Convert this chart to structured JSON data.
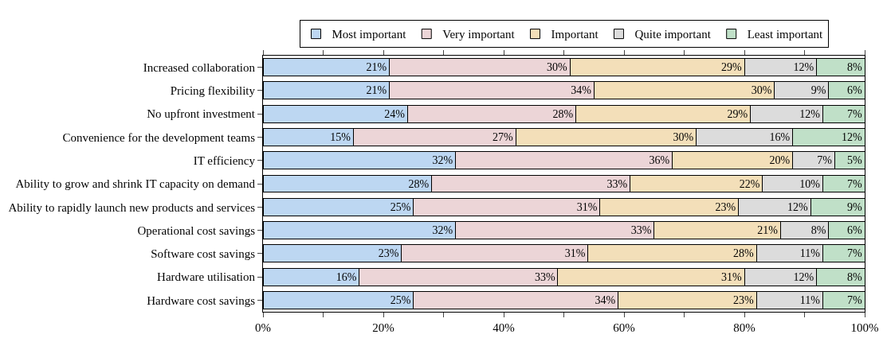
{
  "chart_data": {
    "type": "bar",
    "orientation": "horizontal",
    "stacked": true,
    "categories": [
      "Increased collaboration",
      "Pricing flexibility",
      "No upfront investment",
      "Convenience for the development teams",
      "IT efficiency",
      "Ability to grow and shrink IT capacity on demand",
      "Ability to rapidly launch new products and services",
      "Operational cost savings",
      "Software cost savings",
      "Hardware utilisation",
      "Hardware cost savings"
    ],
    "series": [
      {
        "name": "Most important",
        "color": "#bdd7f2",
        "values": [
          21,
          21,
          24,
          15,
          32,
          28,
          25,
          32,
          23,
          16,
          25
        ],
        "value_labels": [
          "21%",
          "21%",
          "24%",
          "15%",
          "32%",
          "28%",
          "25%",
          "32%",
          "23%",
          "16%",
          "25%"
        ]
      },
      {
        "name": "Very important",
        "color": "#ecd5d7",
        "values": [
          30,
          34,
          28,
          27,
          36,
          33,
          31,
          33,
          31,
          33,
          34
        ],
        "value_labels": [
          "30%",
          "34%",
          "28%",
          "27%",
          "36%",
          "33%",
          "31%",
          "33%",
          "31%",
          "33%",
          "34%"
        ]
      },
      {
        "name": "Important",
        "color": "#f3dfb9",
        "values": [
          29,
          30,
          29,
          30,
          20,
          22,
          23,
          21,
          28,
          31,
          23
        ],
        "value_labels": [
          "29%",
          "30%",
          "29%",
          "30%",
          "20%",
          "22%",
          "23%",
          "21%",
          "28%",
          "31%",
          "23%"
        ]
      },
      {
        "name": "Quite important",
        "color": "#dcdcdc",
        "values": [
          12,
          9,
          12,
          16,
          7,
          10,
          12,
          8,
          11,
          12,
          11
        ],
        "value_labels": [
          "12%",
          "9%",
          "12%",
          "16%",
          "7%",
          "10%",
          "12%",
          "8%",
          "11%",
          "12%",
          "11%"
        ]
      },
      {
        "name": "Least important",
        "color": "#c0e0c8",
        "values": [
          8,
          6,
          7,
          12,
          5,
          7,
          9,
          6,
          7,
          8,
          7
        ],
        "value_labels": [
          "8%",
          "6%",
          "7%",
          "12%",
          "5%",
          "7%",
          "9%",
          "6%",
          "7%",
          "8%",
          "7%"
        ]
      }
    ],
    "xlim": [
      0,
      100
    ],
    "xticks": [
      {
        "value": 0,
        "label": "0%"
      },
      {
        "value": 10,
        "label": null
      },
      {
        "value": 20,
        "label": "20%"
      },
      {
        "value": 30,
        "label": null
      },
      {
        "value": 40,
        "label": "40%"
      },
      {
        "value": 50,
        "label": null
      },
      {
        "value": 60,
        "label": "60%"
      },
      {
        "value": 70,
        "label": null
      },
      {
        "value": 80,
        "label": "80%"
      },
      {
        "value": 90,
        "label": null
      },
      {
        "value": 100,
        "label": "100%"
      }
    ],
    "legend": "top"
  }
}
